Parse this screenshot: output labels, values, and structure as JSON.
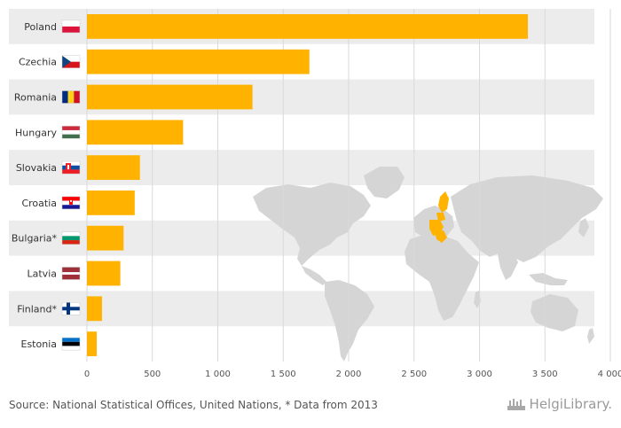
{
  "chart_data": {
    "type": "bar",
    "orientation": "horizontal",
    "categories": [
      "Poland",
      "Czechia",
      "Romania",
      "Hungary",
      "Slovakia",
      "Croatia",
      "Bulgaria*",
      "Latvia",
      "Finland*",
      "Estonia"
    ],
    "values": [
      3370,
      1700,
      1265,
      735,
      405,
      365,
      280,
      255,
      115,
      75
    ],
    "xlim": [
      0,
      4000
    ],
    "xticks": [
      0,
      500,
      1000,
      1500,
      2000,
      2500,
      3000,
      3500,
      4000
    ],
    "xtick_labels": [
      "0",
      "500",
      "1 000",
      "1 500",
      "2 000",
      "2 500",
      "3 000",
      "3 500",
      "4 000"
    ],
    "title": "",
    "xlabel": "",
    "ylabel": "",
    "grid": true,
    "legend": "none",
    "colors": {
      "bar": "#FFB300",
      "stripe": "#ECECEC",
      "grid": "#D9D9D9",
      "map": "#D5D5D5",
      "map_highlight": "#FFB300"
    }
  },
  "flags": [
    "poland-flag",
    "czechia-flag",
    "romania-flag",
    "hungary-flag",
    "slovakia-flag",
    "croatia-flag",
    "bulgaria-flag",
    "latvia-flag",
    "finland-flag",
    "estonia-flag"
  ],
  "footer": {
    "source": "Source: National Statistical Offices, United Nations, * Data from 2013",
    "brand": "HelgiLibrary."
  }
}
